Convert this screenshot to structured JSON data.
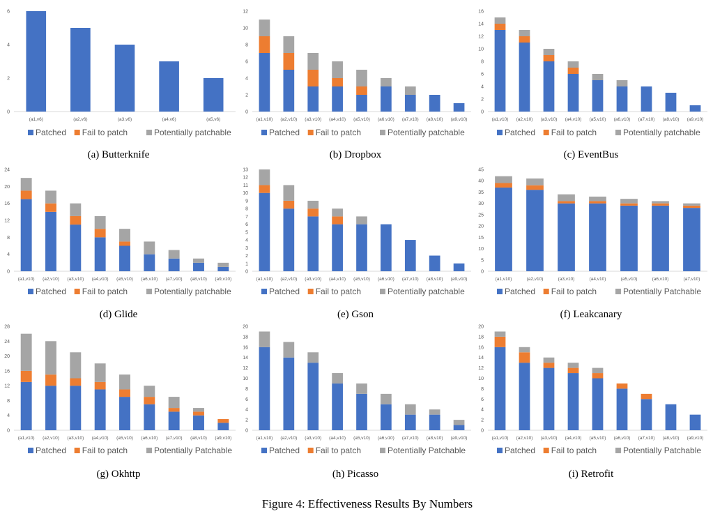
{
  "figure_caption": "Figure 4: Effectiveness Results By Numbers",
  "colors": {
    "patched": "#4472c4",
    "fail": "#ed7d31",
    "potential": "#a5a5a5",
    "axis": "#d9d9d9"
  },
  "chart_data": [
    {
      "type": "bar",
      "caption": "(a) Butterknife",
      "categories": [
        "(a1,v6)",
        "(a2,v6)",
        "(a3,v6)",
        "(a4,v6)",
        "(a5,v6)"
      ],
      "ylim": [
        0,
        6
      ],
      "yticks": [
        0,
        2,
        4,
        6
      ],
      "series": [
        {
          "name": "Patched",
          "values": [
            6,
            5,
            4,
            3,
            2
          ]
        },
        {
          "name": "Fail to patch",
          "values": [
            0,
            0,
            0,
            0,
            0
          ]
        },
        {
          "name": "Potentially patchable",
          "values": [
            0,
            0,
            0,
            0,
            0
          ]
        }
      ]
    },
    {
      "type": "bar",
      "caption": "(b) Dropbox",
      "categories": [
        "(a1,v10)",
        "(a2,v10)",
        "(a3,v10)",
        "(a4,v10)",
        "(a5,v10)",
        "(a6,v10)",
        "(a7,v10)",
        "(a8,v10)",
        "(a9,v10)"
      ],
      "ylim": [
        0,
        12
      ],
      "yticks": [
        0,
        2,
        4,
        6,
        8,
        10,
        12
      ],
      "series": [
        {
          "name": "Patched",
          "values": [
            7,
            5,
            3,
            3,
            2,
            3,
            2,
            2,
            1
          ]
        },
        {
          "name": "Fail to patch",
          "values": [
            2,
            2,
            2,
            1,
            1,
            0,
            0,
            0,
            0
          ]
        },
        {
          "name": "Potentially patchable",
          "values": [
            2,
            2,
            2,
            2,
            2,
            1,
            1,
            0,
            0
          ]
        }
      ]
    },
    {
      "type": "bar",
      "caption": "(c) EventBus",
      "categories": [
        "(a1,v10)",
        "(a2,v10)",
        "(a3,v10)",
        "(a4,v10)",
        "(a5,v10)",
        "(a6,v10)",
        "(a7,v10)",
        "(a8,v10)",
        "(a9,v10)"
      ],
      "ylim": [
        0,
        16
      ],
      "yticks": [
        0,
        2,
        4,
        6,
        8,
        10,
        12,
        14,
        16
      ],
      "series": [
        {
          "name": "Patched",
          "values": [
            13,
            11,
            8,
            6,
            5,
            4,
            4,
            3,
            1
          ]
        },
        {
          "name": "Fail to patch",
          "values": [
            1,
            1,
            1,
            1,
            0,
            0,
            0,
            0,
            0
          ]
        },
        {
          "name": "Potentially patchable",
          "values": [
            1,
            1,
            1,
            1,
            1,
            1,
            0,
            0,
            0
          ]
        }
      ]
    },
    {
      "type": "bar",
      "caption": "(d) Glide",
      "categories": [
        "(a1,v10)",
        "(a2,v10)",
        "(a3,v10)",
        "(a4,v10)",
        "(a5,v10)",
        "(a6,v10)",
        "(a7,v10)",
        "(a8,v10)",
        "(a9,v10)"
      ],
      "ylim": [
        0,
        24
      ],
      "yticks": [
        0,
        4,
        8,
        12,
        16,
        20,
        24
      ],
      "series": [
        {
          "name": "Patched",
          "values": [
            17,
            14,
            11,
            8,
            6,
            4,
            3,
            2,
            1
          ]
        },
        {
          "name": "Fail to patch",
          "values": [
            2,
            2,
            2,
            2,
            1,
            0,
            0,
            0,
            0
          ]
        },
        {
          "name": "Potentially patchable",
          "values": [
            3,
            3,
            3,
            3,
            3,
            3,
            2,
            1,
            1
          ]
        }
      ]
    },
    {
      "type": "bar",
      "caption": "(e) Gson",
      "categories": [
        "(a1,v10)",
        "(a2,v10)",
        "(a3,v10)",
        "(a4,v10)",
        "(a5,v10)",
        "(a6,v10)",
        "(a7,v10)",
        "(a8,v10)",
        "(a9,v10)"
      ],
      "ylim": [
        0,
        13
      ],
      "yticks": [
        0,
        1,
        2,
        3,
        4,
        5,
        6,
        7,
        8,
        9,
        10,
        11,
        12,
        13
      ],
      "series": [
        {
          "name": "Patched",
          "values": [
            10,
            8,
            7,
            6,
            6,
            6,
            4,
            2,
            1
          ]
        },
        {
          "name": "Fail to patch",
          "values": [
            1,
            1,
            1,
            1,
            0,
            0,
            0,
            0,
            0
          ]
        },
        {
          "name": "Potentially patchable",
          "values": [
            2,
            2,
            1,
            1,
            1,
            0,
            0,
            0,
            0
          ]
        }
      ]
    },
    {
      "type": "bar",
      "caption": "(f) Leakcanary",
      "categories": [
        "(a1,v10)",
        "(a2,v10)",
        "(a3,v10)",
        "(a4,v10)",
        "(a5,v10)",
        "(a6,v10)",
        "(a7,v10)"
      ],
      "ylim": [
        0,
        45
      ],
      "yticks": [
        0,
        5,
        10,
        15,
        20,
        25,
        30,
        35,
        40,
        45
      ],
      "series": [
        {
          "name": "Patched",
          "values": [
            37,
            36,
            30,
            30,
            29,
            29,
            28
          ]
        },
        {
          "name": "Fail to patch",
          "values": [
            2,
            2,
            1,
            1,
            1,
            1,
            1
          ]
        },
        {
          "name": "Potentially Patchable",
          "values": [
            3,
            3,
            3,
            2,
            2,
            1,
            1
          ]
        }
      ]
    },
    {
      "type": "bar",
      "caption": "(g) Okhttp",
      "categories": [
        "(a1,v10)",
        "(a2,v10)",
        "(a3,v10)",
        "(a4,v10)",
        "(a5,v10)",
        "(a6,v10)",
        "(a7,v10)",
        "(a8,v10)",
        "(a9,v10)"
      ],
      "ylim": [
        0,
        28
      ],
      "yticks": [
        0,
        4,
        8,
        12,
        16,
        20,
        24,
        28
      ],
      "series": [
        {
          "name": "Patched",
          "values": [
            13,
            12,
            12,
            11,
            9,
            7,
            5,
            4,
            2
          ]
        },
        {
          "name": "Fail to patch",
          "values": [
            3,
            3,
            2,
            2,
            2,
            2,
            1,
            1,
            1
          ]
        },
        {
          "name": "Potentially Patchable",
          "values": [
            10,
            9,
            7,
            5,
            4,
            3,
            3,
            1,
            0
          ]
        }
      ]
    },
    {
      "type": "bar",
      "caption": "(h) Picasso",
      "categories": [
        "(a1,v10)",
        "(a2,v10)",
        "(a3,v10)",
        "(a4,v10)",
        "(a5,v10)",
        "(a6,v10)",
        "(a7,v10)",
        "(a8,v10)",
        "(a9,v10)"
      ],
      "ylim": [
        0,
        20
      ],
      "yticks": [
        0,
        2,
        4,
        6,
        8,
        10,
        12,
        14,
        16,
        18,
        20
      ],
      "series": [
        {
          "name": "Patched",
          "values": [
            16,
            14,
            13,
            9,
            7,
            5,
            3,
            3,
            1
          ]
        },
        {
          "name": "Fail to patch",
          "values": [
            0,
            0,
            0,
            0,
            0,
            0,
            0,
            0,
            0
          ]
        },
        {
          "name": "Potentially Patchable",
          "values": [
            3,
            3,
            2,
            2,
            2,
            2,
            2,
            1,
            1
          ]
        }
      ]
    },
    {
      "type": "bar",
      "caption": "(i) Retrofit",
      "categories": [
        "(a1,v10)",
        "(a2,v10)",
        "(a3,v10)",
        "(a4,v10)",
        "(a5,v10)",
        "(a6,v10)",
        "(a7,v10)",
        "(a8,v10)",
        "(a9,v10)"
      ],
      "ylim": [
        0,
        20
      ],
      "yticks": [
        0,
        2,
        4,
        6,
        8,
        10,
        12,
        14,
        16,
        18,
        20
      ],
      "series": [
        {
          "name": "Patched",
          "values": [
            16,
            13,
            12,
            11,
            10,
            8,
            6,
            5,
            3
          ]
        },
        {
          "name": "Fail to patch",
          "values": [
            2,
            2,
            1,
            1,
            1,
            1,
            1,
            0,
            0
          ]
        },
        {
          "name": "Potentially Patchable",
          "values": [
            1,
            1,
            1,
            1,
            1,
            0,
            0,
            0,
            0
          ]
        }
      ]
    }
  ]
}
